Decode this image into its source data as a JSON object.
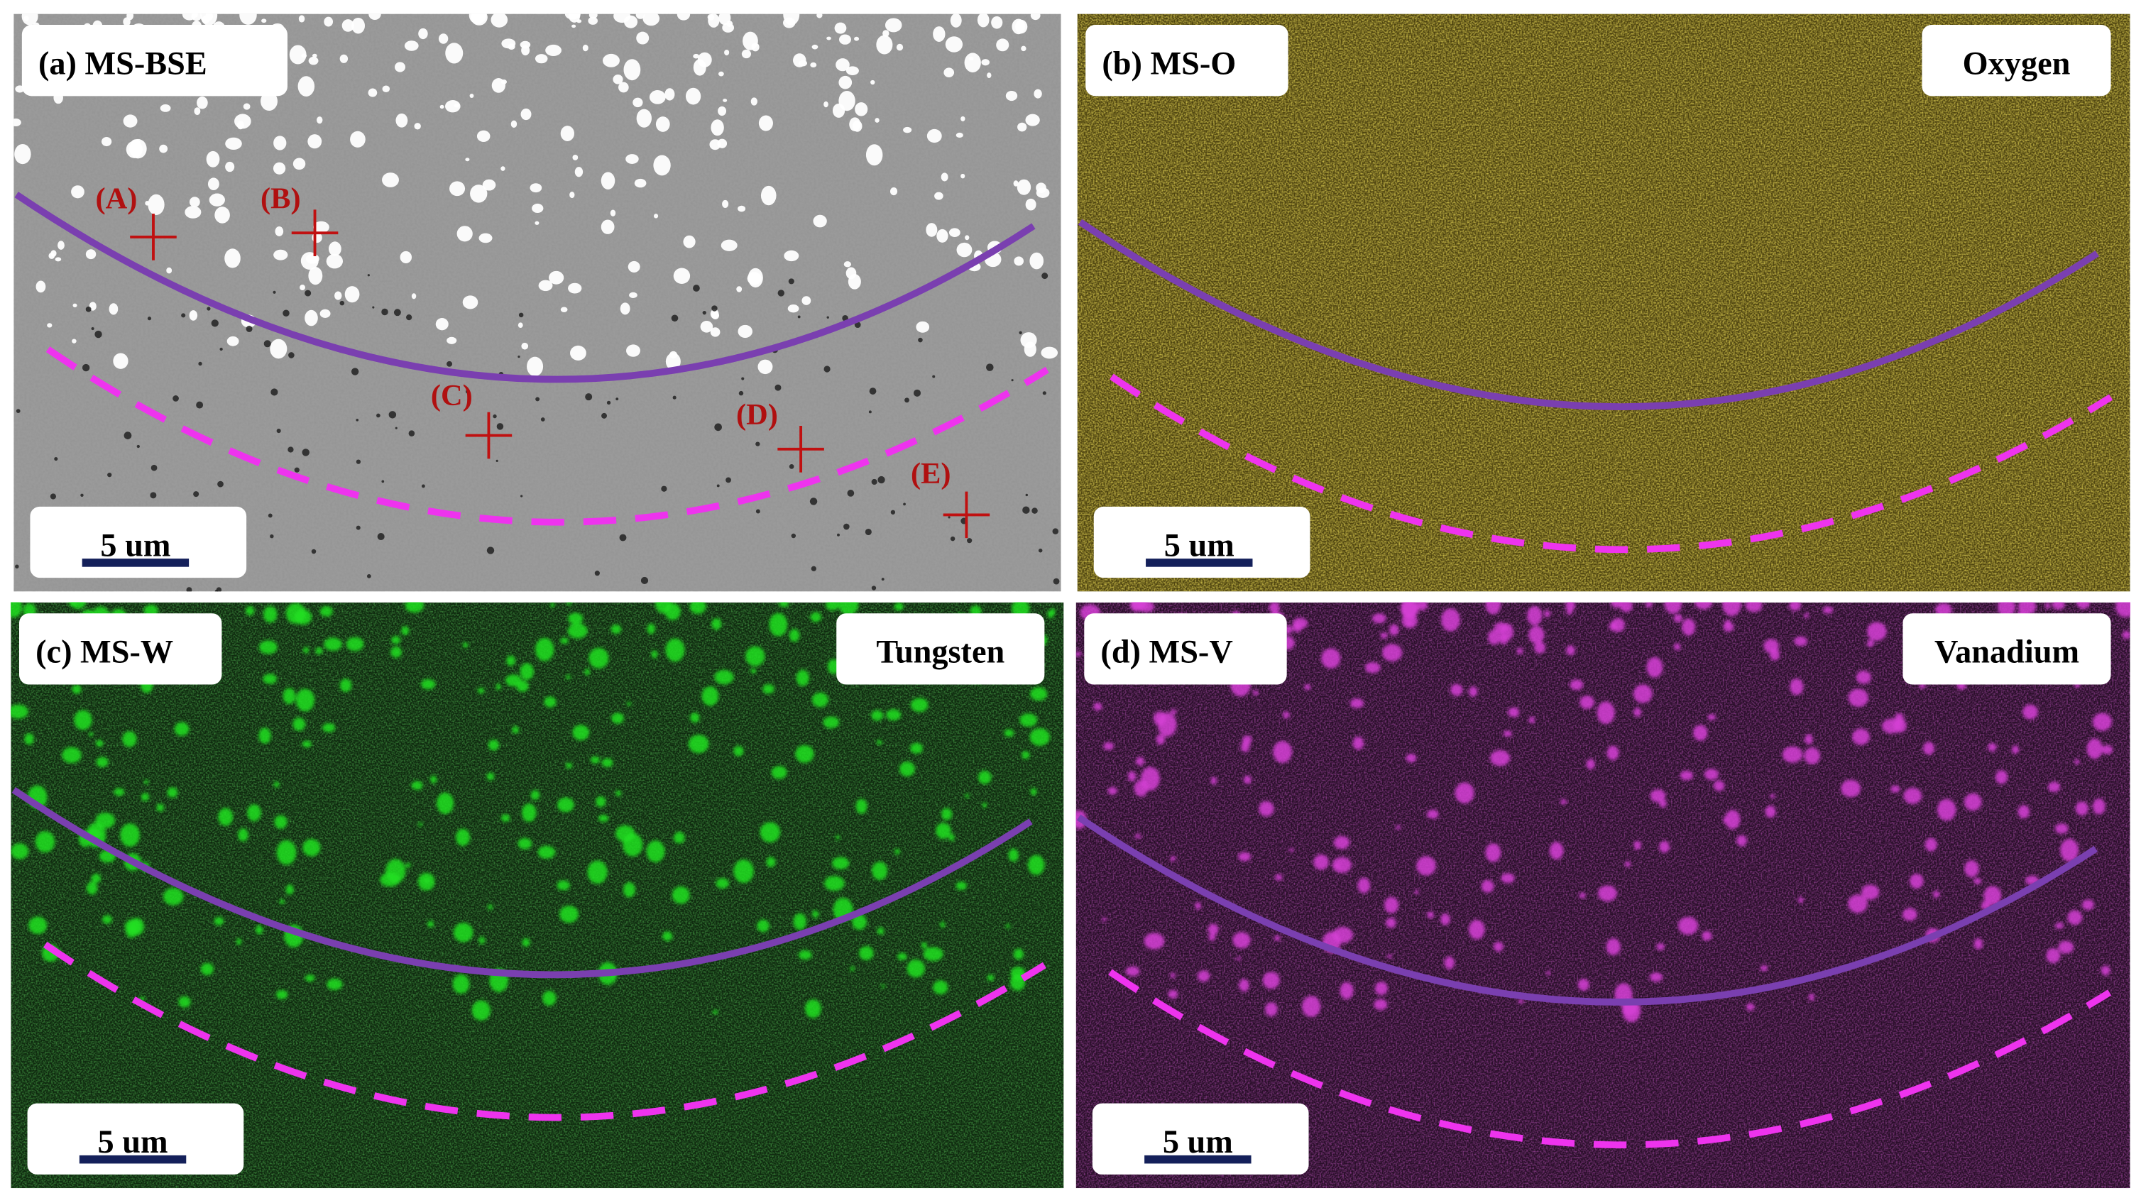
{
  "panels": [
    {
      "label": "(a) MS-BSE",
      "scale_bar": "5 um",
      "markers": [
        "(A)",
        "(B)",
        "(C)",
        "(D)",
        "(E)"
      ]
    },
    {
      "label": "(b) MS-O",
      "element": "Oxygen",
      "scale_bar": "5 um"
    },
    {
      "label": "(c) MS-W",
      "element": "Tungsten",
      "scale_bar": "5 um"
    },
    {
      "label": "(d) MS-V",
      "element": "Vanadium",
      "scale_bar": "5 um"
    }
  ]
}
